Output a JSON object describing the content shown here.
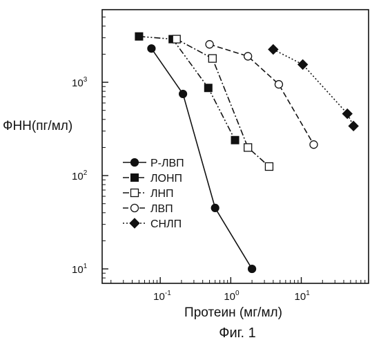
{
  "chart_data": {
    "type": "scatter",
    "xlabel": "Протеин (мг/мл)",
    "ylabel": "ФНН(пг/мл)",
    "caption": "Фиг. 1",
    "xscale": "log",
    "yscale": "log",
    "xlim": [
      0.015,
      90
    ],
    "ylim": [
      7,
      6000
    ],
    "x_ticks": [
      {
        "base": "10",
        "exp": "-1",
        "value": 0.1
      },
      {
        "base": "10",
        "exp": "0",
        "value": 1
      },
      {
        "base": "10",
        "exp": "1",
        "value": 10
      }
    ],
    "y_ticks": [
      {
        "base": "10",
        "exp": "1",
        "value": 10
      },
      {
        "base": "10",
        "exp": "2",
        "value": 100
      },
      {
        "base": "10",
        "exp": "3",
        "value": 1000
      }
    ],
    "grid": false,
    "legend_position": "lower-left",
    "series": [
      {
        "name": "Р-ЛВП",
        "marker": "filled-circle",
        "dash": "solid",
        "x": [
          0.075,
          0.21,
          0.6,
          2.0
        ],
        "y": [
          2300,
          750,
          45,
          10
        ]
      },
      {
        "name": "ЛОНП",
        "marker": "filled-square",
        "dash": "dash-dot-dot",
        "x": [
          0.05,
          0.15,
          0.48,
          1.15
        ],
        "y": [
          3100,
          2900,
          870,
          240
        ]
      },
      {
        "name": "ЛНП",
        "marker": "open-square",
        "dash": "dash-dot",
        "x": [
          0.17,
          0.55,
          1.75,
          3.5
        ],
        "y": [
          2900,
          1800,
          200,
          125
        ]
      },
      {
        "name": "ЛВП",
        "marker": "open-circle",
        "dash": "dashed",
        "x": [
          0.5,
          1.75,
          4.8,
          15
        ],
        "y": [
          2550,
          1900,
          950,
          215
        ]
      },
      {
        "name": "СНЛП",
        "marker": "filled-diamond",
        "dash": "dotted",
        "x": [
          4.0,
          10.5,
          45,
          55
        ],
        "y": [
          2250,
          1550,
          460,
          340
        ]
      }
    ]
  }
}
